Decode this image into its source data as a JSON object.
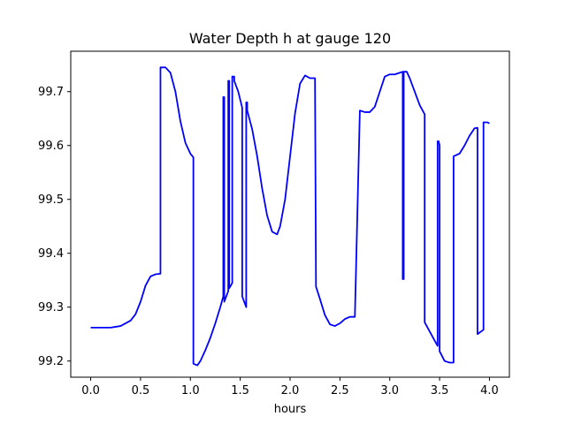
{
  "chart_data": {
    "type": "line",
    "title": "Water Depth h at gauge 120",
    "xlabel": "hours",
    "ylabel": "",
    "xlim": [
      -0.2,
      4.2
    ],
    "ylim": [
      99.17,
      99.775
    ],
    "xticks": [
      0.0,
      0.5,
      1.0,
      1.5,
      2.0,
      2.5,
      3.0,
      3.5,
      4.0
    ],
    "xtick_labels": [
      "0.0",
      "0.5",
      "1.0",
      "1.5",
      "2.0",
      "2.5",
      "3.0",
      "3.5",
      "4.0"
    ],
    "yticks": [
      99.2,
      99.3,
      99.4,
      99.5,
      99.6,
      99.7
    ],
    "ytick_labels": [
      "99.2",
      "99.3",
      "99.4",
      "99.5",
      "99.6",
      "99.7"
    ],
    "grid": false,
    "legend": "none",
    "series": [
      {
        "color": "#0000ff",
        "x": [
          0.0,
          0.1,
          0.2,
          0.3,
          0.4,
          0.45,
          0.5,
          0.55,
          0.6,
          0.65,
          0.7,
          0.7,
          0.75,
          0.8,
          0.85,
          0.9,
          0.95,
          1.0,
          1.03,
          1.03,
          1.07,
          1.1,
          1.15,
          1.2,
          1.25,
          1.3,
          1.33,
          1.33,
          1.34,
          1.34,
          1.38,
          1.38,
          1.39,
          1.39,
          1.42,
          1.42,
          1.44,
          1.44,
          1.48,
          1.52,
          1.52,
          1.56,
          1.56,
          1.57,
          1.57,
          1.62,
          1.67,
          1.72,
          1.77,
          1.82,
          1.87,
          1.9,
          1.95,
          2.0,
          2.05,
          2.1,
          2.15,
          2.2,
          2.25,
          2.26,
          2.26,
          2.3,
          2.35,
          2.4,
          2.45,
          2.5,
          2.55,
          2.6,
          2.65,
          2.7,
          2.7,
          2.75,
          2.8,
          2.85,
          2.9,
          2.95,
          3.0,
          3.05,
          3.1,
          3.13,
          3.13,
          3.14,
          3.14,
          3.17,
          3.2,
          3.25,
          3.3,
          3.35,
          3.35,
          3.4,
          3.45,
          3.48,
          3.48,
          3.49,
          3.5,
          3.5,
          3.55,
          3.6,
          3.64,
          3.64,
          3.7,
          3.75,
          3.8,
          3.85,
          3.88,
          3.88,
          3.94,
          3.94,
          3.98,
          4.0
        ],
        "y": [
          99.262,
          99.262,
          99.262,
          99.265,
          99.275,
          99.287,
          99.31,
          99.34,
          99.357,
          99.361,
          99.362,
          99.745,
          99.745,
          99.735,
          99.7,
          99.645,
          99.605,
          99.585,
          99.578,
          99.195,
          99.192,
          99.2,
          99.22,
          99.243,
          99.27,
          99.3,
          99.32,
          99.69,
          99.69,
          99.31,
          99.33,
          99.72,
          99.72,
          99.335,
          99.345,
          99.728,
          99.728,
          99.72,
          99.7,
          99.67,
          99.32,
          99.3,
          99.68,
          99.68,
          99.665,
          99.63,
          99.58,
          99.52,
          99.47,
          99.44,
          99.435,
          99.45,
          99.5,
          99.58,
          99.66,
          99.715,
          99.73,
          99.725,
          99.725,
          99.338,
          99.338,
          99.315,
          99.285,
          99.268,
          99.265,
          99.27,
          99.278,
          99.282,
          99.282,
          99.665,
          99.665,
          99.662,
          99.662,
          99.672,
          99.7,
          99.728,
          99.732,
          99.732,
          99.735,
          99.737,
          99.352,
          99.352,
          99.737,
          99.737,
          99.725,
          99.7,
          99.675,
          99.658,
          99.272,
          99.255,
          99.238,
          99.228,
          99.608,
          99.608,
          99.6,
          99.218,
          99.2,
          99.197,
          99.197,
          99.58,
          99.585,
          99.6,
          99.618,
          99.632,
          99.633,
          99.25,
          99.258,
          99.643,
          99.643,
          99.641
        ]
      }
    ]
  }
}
